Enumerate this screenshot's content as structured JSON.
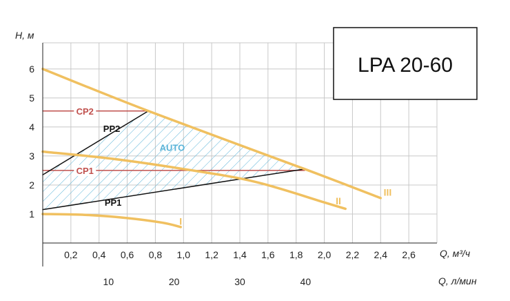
{
  "chart_data": {
    "type": "line",
    "title": "LPA 20-60",
    "ylabel": "H, м",
    "xlabel": "Q, м³/ч",
    "x2label": "Q, л/мин",
    "ylim": [
      0,
      6.9
    ],
    "xlim": [
      0,
      2.8
    ],
    "yticks": [
      1,
      2,
      3,
      4,
      5,
      6
    ],
    "xticks": [
      "0,2",
      "0,4",
      "0,6",
      "0,8",
      "1,0",
      "1,2",
      "1,4",
      "1,6",
      "1,8",
      "2,0",
      "2,2",
      "2,4",
      "2,6"
    ],
    "xtick_values": [
      0.2,
      0.4,
      0.6,
      0.8,
      1.0,
      1.2,
      1.4,
      1.6,
      1.8,
      2.0,
      2.2,
      2.4,
      2.6
    ],
    "x2ticks": [
      "10",
      "20",
      "30",
      "40"
    ],
    "x2tick_values": [
      10,
      20,
      30,
      40
    ],
    "grid": true,
    "colors": {
      "speed_curve": "#f0c060",
      "constant_pressure": "#c0504d",
      "proportional_pressure": "#111111",
      "auto": "#5bb4d8",
      "grid": "#c8c8c8"
    },
    "series": [
      {
        "name": "I",
        "x": [
          0,
          0.3,
          0.6,
          0.85,
          0.98
        ],
        "y": [
          1.0,
          0.97,
          0.86,
          0.7,
          0.55
        ]
      },
      {
        "name": "II",
        "x": [
          0,
          0.5,
          1.0,
          1.5,
          2.0,
          2.15
        ],
        "y": [
          3.15,
          2.9,
          2.55,
          2.12,
          1.4,
          1.18
        ]
      },
      {
        "name": "III",
        "x": [
          0,
          0.75,
          1.86,
          2.4
        ],
        "y": [
          6.0,
          4.55,
          2.55,
          1.55
        ]
      },
      {
        "name": "CP2",
        "x": [
          0,
          0.75
        ],
        "y": [
          4.55,
          4.55
        ]
      },
      {
        "name": "CP1",
        "x": [
          0,
          1.86
        ],
        "y": [
          2.5,
          2.5
        ]
      },
      {
        "name": "PP2",
        "x": [
          0,
          0.75
        ],
        "y": [
          2.35,
          4.55
        ]
      },
      {
        "name": "PP1",
        "x": [
          0,
          1.86
        ],
        "y": [
          1.15,
          2.55
        ]
      }
    ],
    "auto_region": {
      "x": [
        0,
        0.75,
        1.86,
        0
      ],
      "y": [
        2.35,
        4.55,
        2.55,
        1.15
      ]
    },
    "annotations": [
      {
        "text": "I",
        "x": 0.98,
        "y": 0.75
      },
      {
        "text": "II",
        "x": 2.1,
        "y": 1.45
      },
      {
        "text": "III",
        "x": 2.45,
        "y": 1.75
      },
      {
        "text": "CP2",
        "x": 0.3,
        "y": 4.55
      },
      {
        "text": "CP1",
        "x": 0.3,
        "y": 2.5
      },
      {
        "text": "PP2",
        "x": 0.49,
        "y": 3.95
      },
      {
        "text": "PP1",
        "x": 0.5,
        "y": 1.4
      },
      {
        "text": "AUTO",
        "x": 0.92,
        "y": 3.3
      }
    ]
  }
}
